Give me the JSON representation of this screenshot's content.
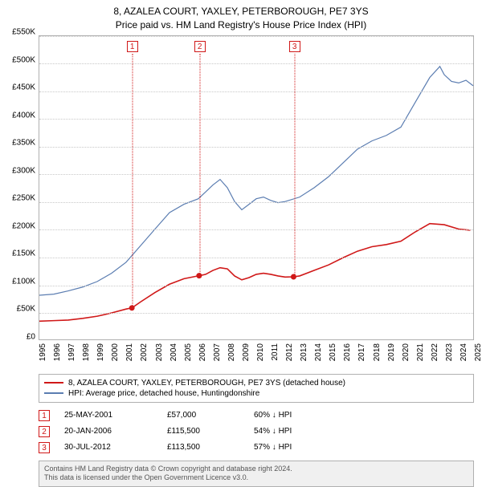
{
  "title": {
    "line1": "8, AZALEA COURT, YAXLEY, PETERBOROUGH, PE7 3YS",
    "line2": "Price paid vs. HM Land Registry's House Price Index (HPI)",
    "fontsize": 12,
    "color": "#000000"
  },
  "chart": {
    "type": "line",
    "background_color": "#ffffff",
    "border_color": "#b0b0b0",
    "grid_color": "#c8c8c8",
    "ylim": [
      0,
      550000
    ],
    "ytick_step": 50000,
    "y_ticks": [
      "£0",
      "£50K",
      "£100K",
      "£150K",
      "£200K",
      "£250K",
      "£300K",
      "£350K",
      "£400K",
      "£450K",
      "£500K",
      "£550K"
    ],
    "x_years": [
      "1995",
      "1996",
      "1997",
      "1998",
      "1999",
      "2000",
      "2001",
      "2002",
      "2003",
      "2004",
      "2005",
      "2006",
      "2007",
      "2008",
      "2009",
      "2010",
      "2011",
      "2012",
      "2013",
      "2014",
      "2015",
      "2016",
      "2017",
      "2018",
      "2019",
      "2020",
      "2021",
      "2022",
      "2023",
      "2024",
      "2025"
    ],
    "tick_fontsize": 10,
    "series": {
      "property": {
        "label": "8, AZALEA COURT, YAXLEY, PETERBOROUGH, PE7 3YS (detached house)",
        "color": "#d01818",
        "line_width": 1.6,
        "marker_fill": "#d01818",
        "marker_radius": 3.5,
        "points": [
          [
            1995.0,
            33000
          ],
          [
            1996.0,
            34000
          ],
          [
            1997.0,
            35000
          ],
          [
            1998.0,
            38000
          ],
          [
            1999.0,
            42000
          ],
          [
            2000.0,
            48000
          ],
          [
            2001.0,
            55000
          ],
          [
            2001.4,
            57000
          ],
          [
            2002.0,
            68000
          ],
          [
            2003.0,
            85000
          ],
          [
            2004.0,
            100000
          ],
          [
            2005.0,
            110000
          ],
          [
            2006.05,
            115500
          ],
          [
            2006.5,
            118000
          ],
          [
            2007.0,
            125000
          ],
          [
            2007.5,
            130000
          ],
          [
            2008.0,
            128000
          ],
          [
            2008.5,
            115000
          ],
          [
            2009.0,
            108000
          ],
          [
            2009.5,
            112000
          ],
          [
            2010.0,
            118000
          ],
          [
            2010.5,
            120000
          ],
          [
            2011.0,
            118000
          ],
          [
            2011.5,
            115000
          ],
          [
            2012.0,
            113000
          ],
          [
            2012.58,
            113500
          ],
          [
            2013.0,
            115000
          ],
          [
            2014.0,
            125000
          ],
          [
            2015.0,
            135000
          ],
          [
            2016.0,
            148000
          ],
          [
            2017.0,
            160000
          ],
          [
            2018.0,
            168000
          ],
          [
            2019.0,
            172000
          ],
          [
            2020.0,
            178000
          ],
          [
            2021.0,
            195000
          ],
          [
            2022.0,
            210000
          ],
          [
            2023.0,
            208000
          ],
          [
            2024.0,
            200000
          ],
          [
            2024.8,
            198000
          ]
        ],
        "sale_markers": [
          {
            "x": 2001.4,
            "y": 57000,
            "n": "1"
          },
          {
            "x": 2006.05,
            "y": 115500,
            "n": "2"
          },
          {
            "x": 2012.58,
            "y": 113500,
            "n": "3"
          }
        ]
      },
      "hpi": {
        "label": "HPI: Average price, detached house, Huntingdonshire",
        "color": "#5b7db1",
        "line_width": 1.2,
        "points": [
          [
            1995.0,
            80000
          ],
          [
            1996.0,
            82000
          ],
          [
            1997.0,
            88000
          ],
          [
            1998.0,
            95000
          ],
          [
            1999.0,
            105000
          ],
          [
            2000.0,
            120000
          ],
          [
            2001.0,
            140000
          ],
          [
            2002.0,
            170000
          ],
          [
            2003.0,
            200000
          ],
          [
            2004.0,
            230000
          ],
          [
            2005.0,
            245000
          ],
          [
            2006.0,
            255000
          ],
          [
            2007.0,
            280000
          ],
          [
            2007.5,
            290000
          ],
          [
            2008.0,
            275000
          ],
          [
            2008.5,
            250000
          ],
          [
            2009.0,
            235000
          ],
          [
            2009.5,
            245000
          ],
          [
            2010.0,
            255000
          ],
          [
            2010.5,
            258000
          ],
          [
            2011.0,
            252000
          ],
          [
            2011.5,
            248000
          ],
          [
            2012.0,
            250000
          ],
          [
            2013.0,
            258000
          ],
          [
            2014.0,
            275000
          ],
          [
            2015.0,
            295000
          ],
          [
            2016.0,
            320000
          ],
          [
            2017.0,
            345000
          ],
          [
            2018.0,
            360000
          ],
          [
            2019.0,
            370000
          ],
          [
            2020.0,
            385000
          ],
          [
            2021.0,
            430000
          ],
          [
            2022.0,
            475000
          ],
          [
            2022.7,
            495000
          ],
          [
            2023.0,
            480000
          ],
          [
            2023.5,
            468000
          ],
          [
            2024.0,
            465000
          ],
          [
            2024.5,
            470000
          ],
          [
            2025.0,
            460000
          ]
        ]
      }
    },
    "marker_box": {
      "border_color": "#d01818",
      "text_color": "#d01818",
      "background": "#ffffff",
      "line_color": "#d01818",
      "size": 14,
      "fontsize": 10
    }
  },
  "legend": {
    "border_color": "#b0b0b0",
    "fontsize": 10
  },
  "sales": [
    {
      "n": "1",
      "date": "25-MAY-2001",
      "price": "£57,000",
      "diff": "60% ↓ HPI"
    },
    {
      "n": "2",
      "date": "20-JAN-2006",
      "price": "£115,500",
      "diff": "54% ↓ HPI"
    },
    {
      "n": "3",
      "date": "30-JUL-2012",
      "price": "£113,500",
      "diff": "57% ↓ HPI"
    }
  ],
  "footer": {
    "line1": "Contains HM Land Registry data © Crown copyright and database right 2024.",
    "line2": "This data is licensed under the Open Government Licence v3.0.",
    "background": "#f0f0f0",
    "color": "#555555",
    "border_color": "#b0b0b0",
    "fontsize": 9
  }
}
